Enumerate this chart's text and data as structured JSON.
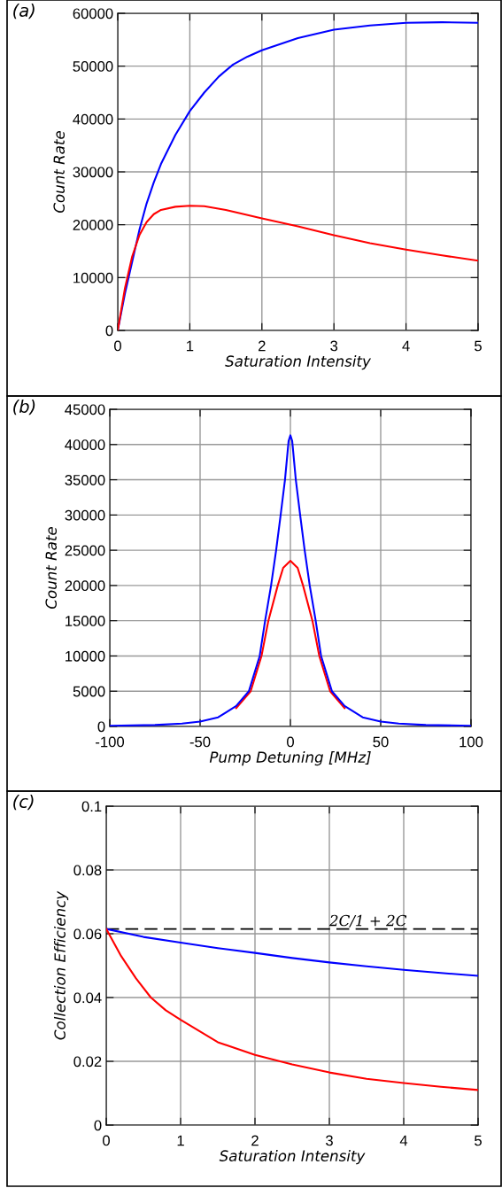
{
  "chart_data": [
    {
      "type": "line",
      "title": "(a)",
      "xlabel": "Saturation Intensity",
      "ylabel": "Count Rate",
      "xlim": [
        0,
        5
      ],
      "xticks": [
        0,
        1,
        2,
        3,
        4,
        5
      ],
      "ylim": [
        0,
        60000
      ],
      "yticks": [
        0,
        10000,
        20000,
        30000,
        40000,
        50000,
        60000
      ],
      "grid": true,
      "series": [
        {
          "color": "#0000ff",
          "x": [
            0,
            0.1,
            0.2,
            0.3,
            0.4,
            0.5,
            0.6,
            0.8,
            1,
            1.2,
            1.4,
            1.6,
            1.8,
            2,
            2.5,
            3,
            3.5,
            4,
            4.5,
            5
          ],
          "values": [
            0,
            7000,
            13000,
            19000,
            24000,
            28000,
            31500,
            37000,
            41500,
            45000,
            48000,
            50300,
            51800,
            53000,
            55300,
            56900,
            57700,
            58200,
            58300,
            58200
          ]
        },
        {
          "color": "#ff0000",
          "x": [
            0,
            0.1,
            0.2,
            0.3,
            0.4,
            0.5,
            0.6,
            0.8,
            1,
            1.2,
            1.5,
            2,
            2.5,
            3,
            3.5,
            4,
            4.5,
            5
          ],
          "values": [
            0,
            8000,
            14000,
            18000,
            20500,
            22000,
            22800,
            23400,
            23600,
            23500,
            22800,
            21200,
            19700,
            18000,
            16500,
            15300,
            14200,
            13200
          ]
        }
      ]
    },
    {
      "type": "line",
      "title": "(b)",
      "xlabel": "Pump Detuning [MHz]",
      "ylabel": "Count Rate",
      "xlim": [
        -100,
        100
      ],
      "xticks": [
        -100,
        -50,
        0,
        50,
        100
      ],
      "ylim": [
        0,
        45000
      ],
      "yticks": [
        0,
        5000,
        10000,
        15000,
        20000,
        25000,
        30000,
        35000,
        40000,
        45000
      ],
      "grid": true,
      "series": [
        {
          "color": "#ff0000",
          "x": [
            -30,
            -22,
            -16,
            -12.2,
            -7,
            -4,
            0,
            4,
            7,
            12.2,
            16,
            22,
            30
          ],
          "values": [
            2600,
            5000,
            10000,
            15000,
            20000,
            22500,
            23500,
            22500,
            20000,
            15000,
            10000,
            5000,
            2600
          ]
        },
        {
          "color": "#0000ff",
          "x": [
            -100,
            -75,
            -60,
            -50,
            -40,
            -30,
            -23,
            -17,
            -14,
            -10.7,
            -7.9,
            -5.4,
            -3,
            -1,
            0,
            1,
            3,
            5.4,
            7.9,
            10.7,
            14,
            17,
            23,
            30,
            40,
            50,
            60,
            75,
            100
          ],
          "values": [
            100,
            200,
            400,
            700,
            1300,
            2900,
            5000,
            10000,
            15000,
            20000,
            25000,
            30000,
            35000,
            40500,
            41300,
            40500,
            35000,
            30000,
            25000,
            20000,
            15000,
            10000,
            5000,
            2900,
            1300,
            700,
            400,
            200,
            100
          ]
        }
      ]
    },
    {
      "type": "line",
      "title": "(c)",
      "xlabel": "Saturation Intensity",
      "ylabel": "Collection Efficiency",
      "xlim": [
        0,
        5
      ],
      "xticks": [
        0,
        1,
        2,
        3,
        4,
        5
      ],
      "ylim": [
        0,
        0.1
      ],
      "yticks": [
        0,
        0.02,
        0.04,
        0.06,
        0.08,
        0.1
      ],
      "grid": true,
      "ref_lines": [
        {
          "axis": "y",
          "value": 0.0615,
          "label": "2C/1 + 2C",
          "color": "#000000",
          "line_style": "dashed"
        }
      ],
      "series": [
        {
          "color": "#0000ff",
          "x": [
            0,
            0.5,
            1,
            1.5,
            2,
            2.5,
            3,
            3.5,
            4,
            4.5,
            5
          ],
          "values": [
            0.0615,
            0.059,
            0.0572,
            0.0555,
            0.054,
            0.0524,
            0.051,
            0.0498,
            0.0487,
            0.0477,
            0.0468
          ]
        },
        {
          "color": "#ff0000",
          "x": [
            0,
            0.2,
            0.4,
            0.6,
            0.8,
            1,
            1.5,
            2,
            2.5,
            3,
            3.5,
            4,
            4.5,
            5
          ],
          "values": [
            0.0615,
            0.053,
            0.046,
            0.04,
            0.036,
            0.033,
            0.026,
            0.022,
            0.019,
            0.0165,
            0.0145,
            0.0132,
            0.012,
            0.011
          ]
        }
      ]
    }
  ]
}
